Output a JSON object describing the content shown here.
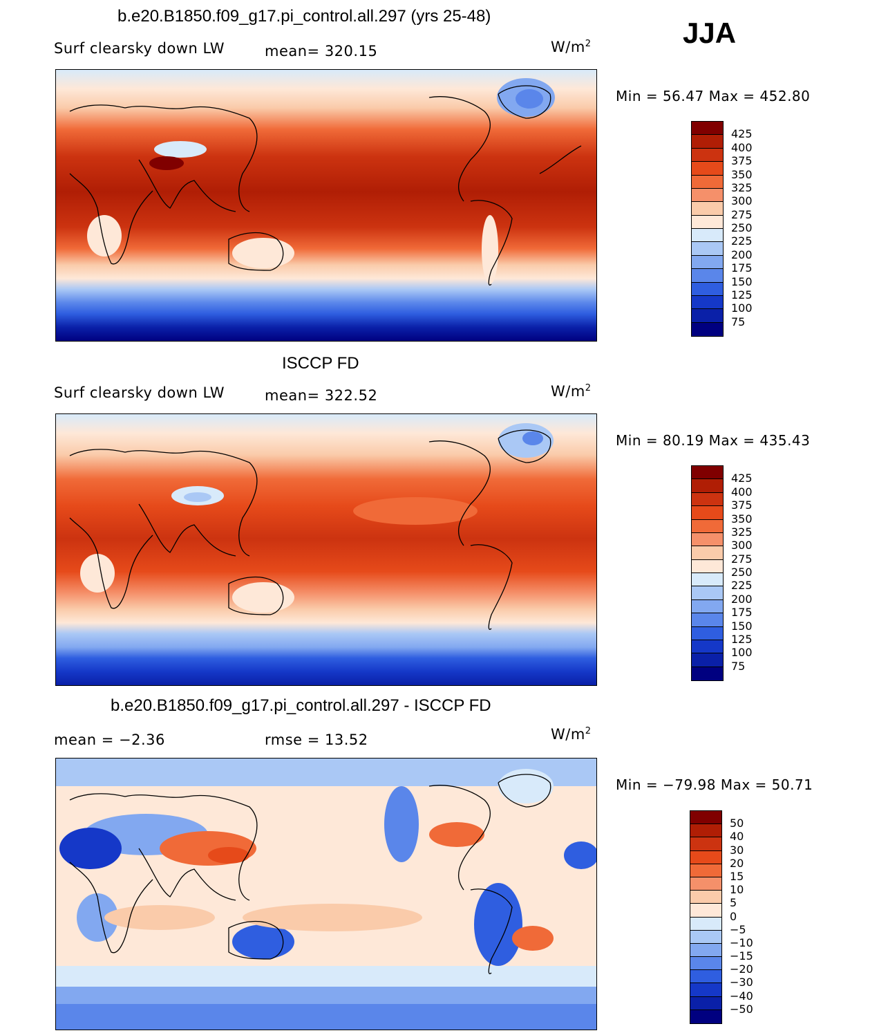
{
  "season": "JJA",
  "units": "W/m",
  "units_sup": "2",
  "panels": [
    {
      "title": "b.e20.B1850.f09_g17.pi_control.all.297 (yrs 25-48)",
      "left_label": "Surf clearsky down LW",
      "mid_label": "mean= 320.15",
      "minmax": "Min =  56.47 Max = 452.80",
      "colorbar_ticks": [
        "425",
        "400",
        "375",
        "350",
        "325",
        "300",
        "275",
        "250",
        "225",
        "200",
        "175",
        "150",
        "125",
        "100",
        "75"
      ],
      "colorbar_colors": [
        "#800000",
        "#b01e05",
        "#cc3310",
        "#e64a1a",
        "#f06a38",
        "#f5906a",
        "#facbaa",
        "#fee8d8",
        "#d8eafa",
        "#aac8f5",
        "#82a8f0",
        "#5a86ea",
        "#2f5ee0",
        "#1538c8",
        "#0a20a8",
        "#000080"
      ]
    },
    {
      "title": "ISCCP FD",
      "left_label": "Surf clearsky down LW",
      "mid_label": "mean= 322.52",
      "minmax": "Min =  80.19 Max = 435.43",
      "colorbar_ticks": [
        "425",
        "400",
        "375",
        "350",
        "325",
        "300",
        "275",
        "250",
        "225",
        "200",
        "175",
        "150",
        "125",
        "100",
        "75"
      ],
      "colorbar_colors": [
        "#800000",
        "#b01e05",
        "#cc3310",
        "#e64a1a",
        "#f06a38",
        "#f5906a",
        "#facbaa",
        "#fee8d8",
        "#d8eafa",
        "#aac8f5",
        "#82a8f0",
        "#5a86ea",
        "#2f5ee0",
        "#1538c8",
        "#0a20a8",
        "#000080"
      ]
    },
    {
      "title": "b.e20.B1850.f09_g17.pi_control.all.297 - ISCCP FD",
      "left_label": "mean =  −2.36",
      "mid_label": "rmse =   13.52",
      "minmax": "Min = −79.98 Max =  50.71",
      "colorbar_ticks": [
        "50",
        "40",
        "30",
        "20",
        "15",
        "10",
        "5",
        "0",
        "−5",
        "−10",
        "−15",
        "−20",
        "−30",
        "−40",
        "−50"
      ],
      "colorbar_colors": [
        "#800000",
        "#b01e05",
        "#cc3310",
        "#e64a1a",
        "#f06a38",
        "#f5906a",
        "#facbaa",
        "#fee8d8",
        "#d8eafa",
        "#aac8f5",
        "#82a8f0",
        "#5a86ea",
        "#2f5ee0",
        "#1538c8",
        "#0a20a8",
        "#000080"
      ]
    }
  ]
}
